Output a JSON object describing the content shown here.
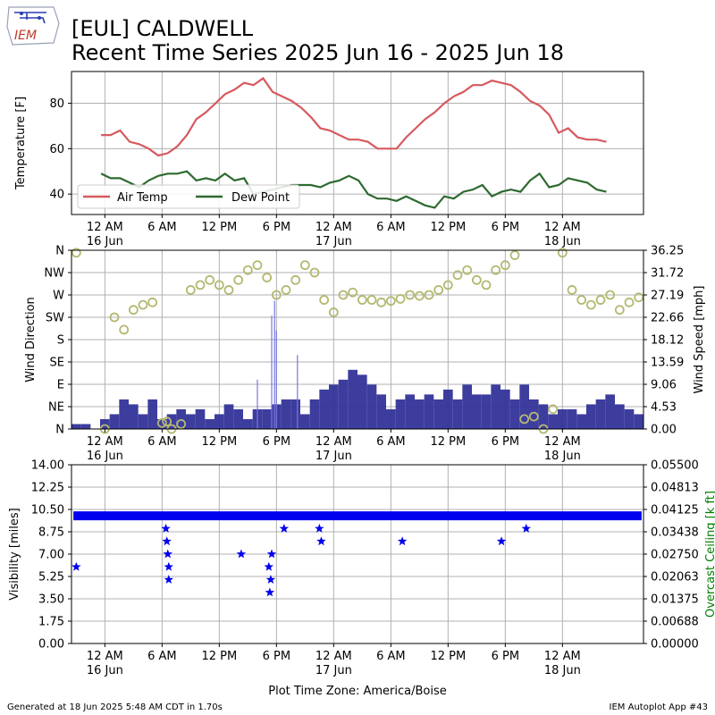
{
  "header": {
    "logo_text": "IEM",
    "title_line1": "[EUL] CALDWELL",
    "title_line2": "Recent Time Series 2025 Jun 16 - 2025 Jun 18"
  },
  "footer": {
    "generated": "Generated at 18 Jun 2025 5:48 AM CDT in 1.70s",
    "app": "IEM Autoplot App #43",
    "xlabel": "Plot Time Zone: America/Boise"
  },
  "time_axis": {
    "range_hours": [
      -3.5,
      56.5
    ],
    "ticks": [
      {
        "h": 0,
        "label": "12 AM",
        "sub": "16 Jun"
      },
      {
        "h": 6,
        "label": "6 AM",
        "sub": ""
      },
      {
        "h": 12,
        "label": "12 PM",
        "sub": ""
      },
      {
        "h": 18,
        "label": "6 PM",
        "sub": ""
      },
      {
        "h": 24,
        "label": "12 AM",
        "sub": "17 Jun"
      },
      {
        "h": 30,
        "label": "6 AM",
        "sub": ""
      },
      {
        "h": 36,
        "label": "12 PM",
        "sub": ""
      },
      {
        "h": 42,
        "label": "6 PM",
        "sub": ""
      },
      {
        "h": 48,
        "label": "12 AM",
        "sub": "18 Jun"
      }
    ]
  },
  "chart_data": [
    {
      "type": "line",
      "ylabel": "Temperature [F]",
      "ylim": [
        31,
        94
      ],
      "yticks": [
        40,
        60,
        80
      ],
      "grid": true,
      "legend": "lower-left",
      "colors": {
        "air_temp": "#d65a5f",
        "dew_point": "#2e6a30"
      },
      "series": [
        {
          "name": "Air Temp",
          "x": [
            -0.4,
            0.6,
            1.6,
            2.6,
            3.6,
            4.6,
            5.6,
            6.6,
            7.6,
            8.6,
            9.6,
            10.6,
            11.6,
            12.6,
            13.6,
            14.6,
            15.6,
            16.6,
            17.6,
            18.6,
            19.6,
            20.6,
            21.6,
            22.6,
            23.6,
            24.6,
            25.6,
            26.6,
            27.6,
            28.6,
            29.6,
            30.6,
            31.6,
            32.6,
            33.6,
            34.6,
            35.6,
            36.6,
            37.6,
            38.6,
            39.6,
            40.6,
            41.6,
            42.6,
            43.6,
            44.6,
            45.6,
            46.6,
            47.6,
            48.6,
            49.6,
            50.6,
            51.6,
            52.6
          ],
          "values": [
            66,
            66,
            68,
            63,
            62,
            60,
            57,
            58,
            61,
            66,
            73,
            76,
            80,
            84,
            86,
            89,
            88,
            91,
            85,
            83,
            81,
            78,
            74,
            69,
            68,
            66,
            64,
            64,
            63,
            60,
            60,
            60,
            65,
            69,
            73,
            76,
            80,
            83,
            85,
            88,
            88,
            90,
            89,
            88,
            85,
            81,
            79,
            75,
            67,
            69,
            65,
            64,
            64,
            63
          ]
        },
        {
          "name": "Dew Point",
          "x": [
            -0.4,
            0.6,
            1.6,
            2.6,
            3.6,
            4.6,
            5.6,
            6.6,
            7.6,
            8.6,
            9.6,
            10.6,
            11.6,
            12.6,
            13.6,
            14.6,
            15.6,
            16.6,
            17.6,
            18.6,
            19.6,
            20.6,
            21.6,
            22.6,
            23.6,
            24.6,
            25.6,
            26.6,
            27.6,
            28.6,
            29.6,
            30.6,
            31.6,
            32.6,
            33.6,
            34.6,
            35.6,
            36.6,
            37.6,
            38.6,
            39.6,
            40.6,
            41.6,
            42.6,
            43.6,
            44.6,
            45.6,
            46.6,
            47.6,
            48.6,
            49.6,
            50.6,
            51.6,
            52.6
          ],
          "values": [
            49,
            47,
            47,
            45,
            43,
            46,
            48,
            49,
            49,
            50,
            46,
            47,
            46,
            49,
            46,
            47,
            40,
            41,
            42,
            43,
            44,
            44,
            44,
            43,
            45,
            46,
            48,
            46,
            40,
            38,
            38,
            37,
            39,
            37,
            35,
            34,
            39,
            38,
            41,
            42,
            44,
            39,
            41,
            42,
            41,
            46,
            49,
            43,
            44,
            47,
            46,
            45,
            42,
            41
          ]
        }
      ]
    },
    {
      "type": "bar",
      "ylabel_left": "Wind Direction",
      "ylabel_right": "Wind Speed [mph]",
      "direction_ticks": [
        "N",
        "NE",
        "E",
        "SE",
        "S",
        "SW",
        "W",
        "NW",
        "N"
      ],
      "speed_ticks": [
        "0.00",
        "4.53",
        "9.06",
        "13.59",
        "18.12",
        "22.66",
        "27.19",
        "31.72",
        "36.25"
      ],
      "speed_ylim": [
        0,
        36.25
      ],
      "grid": true,
      "colors": {
        "speed_bars": "#333399",
        "gust_bars": "#7777dd",
        "direction_markers": "#b5b872"
      },
      "series": [
        {
          "name": "",
          "hours": [
            -3,
            -2,
            -1,
            0,
            1,
            2,
            3,
            4,
            5,
            6,
            7,
            8,
            9,
            10,
            11,
            12,
            13,
            14,
            15,
            16,
            17,
            18,
            19,
            20,
            21,
            22,
            23,
            24,
            25,
            26,
            27,
            28,
            29,
            30,
            31,
            32,
            33,
            34,
            35,
            36,
            37,
            38,
            39,
            40,
            41,
            42,
            43,
            44,
            45,
            46,
            47,
            48,
            49,
            50,
            51,
            52,
            53,
            54,
            55,
            56
          ],
          "values": [
            1,
            1,
            0,
            2,
            3,
            6,
            5,
            3,
            6,
            2,
            3,
            4,
            3,
            4,
            2,
            3,
            5,
            4,
            2,
            4,
            4,
            5,
            6,
            6,
            3,
            6,
            8,
            9,
            10,
            12,
            11,
            9,
            7,
            4,
            6,
            7,
            6,
            7,
            6,
            8,
            6,
            9,
            7,
            7,
            9,
            8,
            6,
            9,
            6,
            5,
            3,
            4,
            4,
            3,
            5,
            6,
            7,
            5,
            4,
            3
          ],
          "gusts": [
            {
              "h": 17.8,
              "v": 26
            },
            {
              "h": 17.5,
              "v": 23
            },
            {
              "h": 18.0,
              "v": 20
            },
            {
              "h": 20.2,
              "v": 15
            },
            {
              "h": 16.0,
              "v": 10
            }
          ]
        },
        {
          "name": "",
          "unit": "degrees",
          "points": [
            [
              -3,
              355
            ],
            [
              0,
              0
            ],
            [
              1,
              225
            ],
            [
              2,
              200
            ],
            [
              3,
              240
            ],
            [
              4,
              250
            ],
            [
              5,
              255
            ],
            [
              6,
              12
            ],
            [
              6.5,
              15
            ],
            [
              7,
              0
            ],
            [
              8,
              10
            ],
            [
              9,
              280
            ],
            [
              10,
              290
            ],
            [
              11,
              300
            ],
            [
              12,
              290
            ],
            [
              13,
              280
            ],
            [
              14,
              300
            ],
            [
              15,
              320
            ],
            [
              16,
              330
            ],
            [
              17,
              305
            ],
            [
              18,
              270
            ],
            [
              19,
              280
            ],
            [
              20,
              300
            ],
            [
              21,
              330
            ],
            [
              22,
              315
            ],
            [
              23,
              260
            ],
            [
              24,
              235
            ],
            [
              25,
              270
            ],
            [
              26,
              275
            ],
            [
              27,
              260
            ],
            [
              28,
              260
            ],
            [
              29,
              255
            ],
            [
              30,
              258
            ],
            [
              31,
              262
            ],
            [
              32,
              270
            ],
            [
              33,
              268
            ],
            [
              34,
              270
            ],
            [
              35,
              280
            ],
            [
              36,
              290
            ],
            [
              37,
              310
            ],
            [
              38,
              320
            ],
            [
              39,
              300
            ],
            [
              40,
              290
            ],
            [
              41,
              320
            ],
            [
              42,
              330
            ],
            [
              43,
              350
            ],
            [
              44,
              20
            ],
            [
              45,
              25
            ],
            [
              46,
              0
            ],
            [
              47,
              40
            ],
            [
              48,
              355
            ],
            [
              49,
              280
            ],
            [
              50,
              260
            ],
            [
              51,
              250
            ],
            [
              52,
              260
            ],
            [
              53,
              270
            ],
            [
              54,
              240
            ],
            [
              55,
              255
            ],
            [
              56,
              265
            ]
          ]
        }
      ]
    },
    {
      "type": "scatter",
      "ylabel_left": "Visibility [miles]",
      "ylabel_right": "Overcast Ceiling [k ft]",
      "vis_ticks": [
        "0.00",
        "1.75",
        "3.50",
        "5.25",
        "7.00",
        "8.75",
        "10.50",
        "12.25",
        "14.00"
      ],
      "ceiling_ticks": [
        "0.00000",
        "0.00688",
        "0.01375",
        "0.02063",
        "0.02750",
        "0.03438",
        "0.04125",
        "0.04813",
        "0.05500"
      ],
      "ylim": [
        0,
        14
      ],
      "grid": true,
      "colors": {
        "visibility": "#0000ee",
        "ceiling_label": "#008000"
      },
      "series": [
        {
          "name": "",
          "baseline": 10,
          "baseline_range": [
            -3.3,
            56.3
          ],
          "points": [
            [
              -3,
              6
            ],
            [
              6.4,
              9
            ],
            [
              6.5,
              8
            ],
            [
              6.6,
              7
            ],
            [
              6.7,
              6
            ],
            [
              6.7,
              5
            ],
            [
              14.3,
              7
            ],
            [
              17.2,
              6
            ],
            [
              17.4,
              5
            ],
            [
              17.3,
              4
            ],
            [
              17.5,
              7
            ],
            [
              18.8,
              9
            ],
            [
              22.5,
              9
            ],
            [
              22.7,
              8
            ],
            [
              31.2,
              8
            ],
            [
              41.6,
              8
            ],
            [
              44.2,
              9
            ]
          ]
        }
      ]
    }
  ]
}
